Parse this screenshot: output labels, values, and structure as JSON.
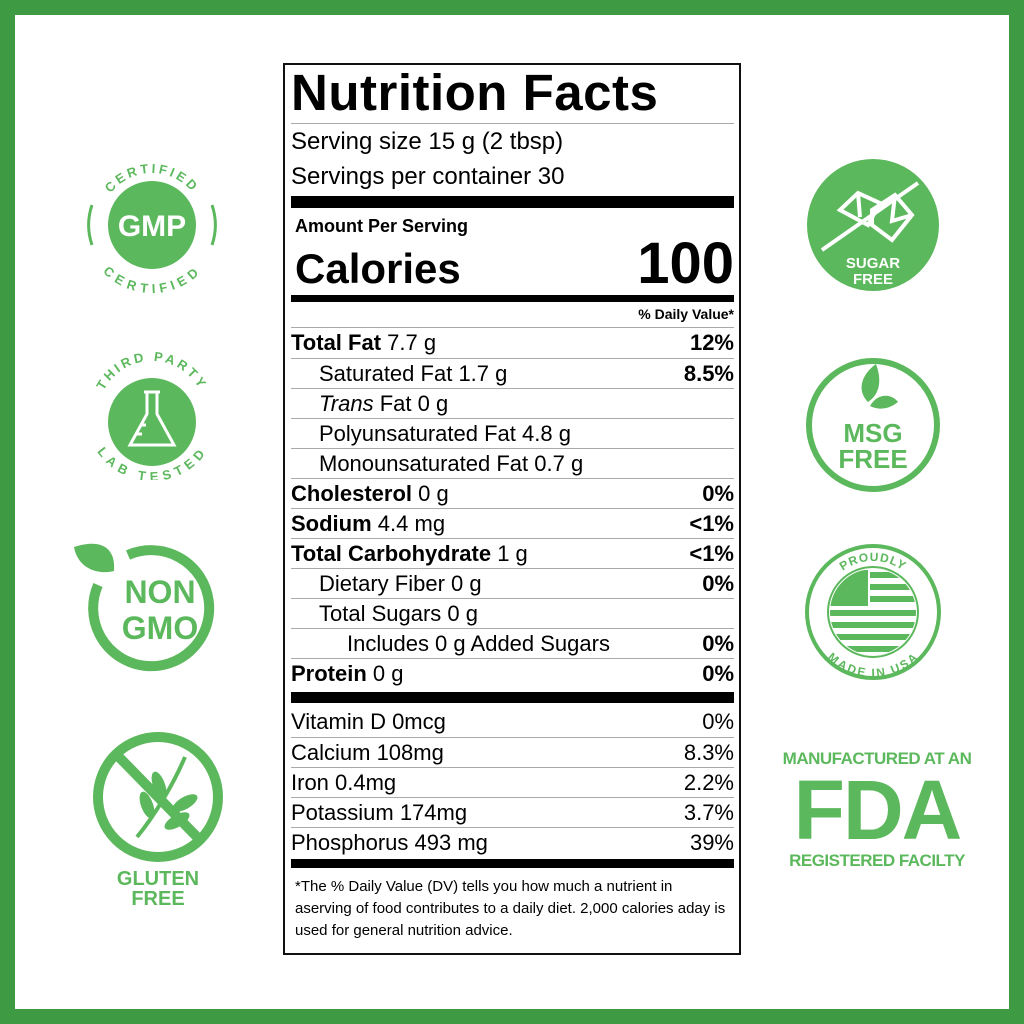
{
  "colors": {
    "border": "#3f9a44",
    "badge": "#5cb85c",
    "text": "#000000"
  },
  "label": {
    "title": "Nutrition Facts",
    "serving_size": "Serving size 15 g (2 tbsp)",
    "servings_per_container": "Servings per container 30",
    "amount_per_serving": "Amount Per Serving",
    "calories_label": "Calories",
    "calories_value": "100",
    "daily_value_header": "% Daily Value*",
    "nutrients": [
      {
        "name": "Total Fat",
        "amount": "7.7 g",
        "dv": "12%",
        "bold": true,
        "indent": 0
      },
      {
        "name": "Saturated Fat",
        "amount": "1.7 g",
        "dv": "8.5%",
        "bold": false,
        "indent": 1
      },
      {
        "italic_prefix": "Trans",
        "name": "Fat",
        "amount": "0 g",
        "dv": "",
        "bold": false,
        "indent": 1
      },
      {
        "name": "Polyunsaturated Fat",
        "amount": "4.8 g",
        "dv": "",
        "bold": false,
        "indent": 1
      },
      {
        "name": "Monounsaturated Fat",
        "amount": "0.7 g",
        "dv": "",
        "bold": false,
        "indent": 1
      },
      {
        "name": "Cholesterol",
        "amount": "0 g",
        "dv": "0%",
        "bold": true,
        "indent": 0
      },
      {
        "name": "Sodium",
        "amount": "4.4 mg",
        "dv": "<1%",
        "bold": true,
        "indent": 0
      },
      {
        "name": "Total Carbohydrate",
        "amount": "1 g",
        "dv": "<1%",
        "bold": true,
        "indent": 0
      },
      {
        "name": "Dietary Fiber",
        "amount": "0 g",
        "dv": "0%",
        "bold": false,
        "indent": 1
      },
      {
        "name": "Total Sugars",
        "amount": "0 g",
        "dv": "",
        "bold": false,
        "indent": 1
      },
      {
        "name": "Includes 0 g Added Sugars",
        "amount": "",
        "dv": "0%",
        "bold": false,
        "indent": 2
      },
      {
        "name": "Protein",
        "amount": "0 g",
        "dv": "0%",
        "bold": true,
        "indent": 0
      }
    ],
    "vitamins": [
      {
        "name": "Vitamin D 0mcg",
        "dv": "0%"
      },
      {
        "name": "Calcium 108mg",
        "dv": "8.3%"
      },
      {
        "name": "Iron 0.4mg",
        "dv": "2.2%"
      },
      {
        "name": "Potassium 174mg",
        "dv": "3.7%"
      },
      {
        "name": "Phosphorus 493 mg",
        "dv": "39%"
      }
    ],
    "footnote": "*The % Daily Value (DV) tells you how much a nutrient in aserving of food contributes to a daily diet. 2,000 calories aday is used for general nutrition advice."
  },
  "badges": {
    "gmp": {
      "top": "CERTIFIED",
      "center": "GMP",
      "bottom": "CERTIFIED"
    },
    "lab": {
      "top": "THIRD PARTY",
      "bottom": "LAB TESTED",
      "icon": "flask-icon"
    },
    "nongmo": {
      "line1": "NON",
      "line2": "GMO",
      "icon": "leaf-icon"
    },
    "gluten": {
      "line1": "GLUTEN",
      "line2": "FREE",
      "icon": "wheat-icon"
    },
    "sugar": {
      "line1": "SUGAR",
      "line2": "FREE",
      "icon": "sugar-cube-icon"
    },
    "msg": {
      "line1": "MSG",
      "line2": "FREE",
      "icon": "leaf-icon"
    },
    "usa": {
      "top": "PROUDLY",
      "bottom": "MADE IN USA",
      "icon": "us-flag-icon"
    },
    "fda": {
      "top": "MANUFACTURED AT AN",
      "center": "FDA",
      "bottom": "REGISTERED FACILTY"
    }
  }
}
